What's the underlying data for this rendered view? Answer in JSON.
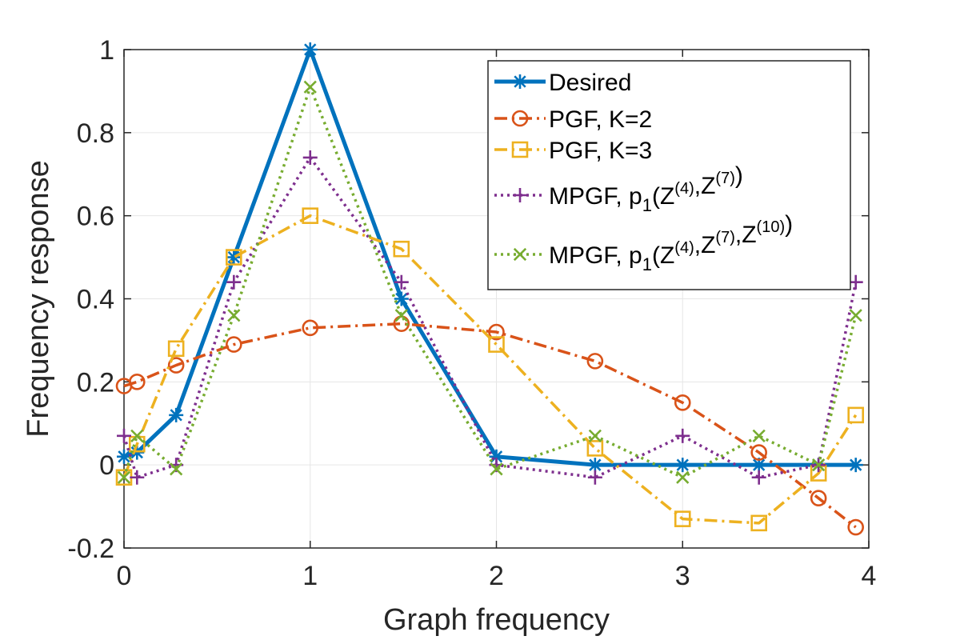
{
  "chart_data": {
    "type": "line",
    "title": "",
    "xlabel": "Graph frequency",
    "ylabel": "Frequency response",
    "xlim": [
      0,
      4
    ],
    "ylim": [
      -0.2,
      1
    ],
    "xticks": [
      "0",
      "1",
      "2",
      "3",
      "4"
    ],
    "yticks": [
      "-0.2",
      "0",
      "0.2",
      "0.4",
      "0.6",
      "0.8",
      "1"
    ],
    "grid": true,
    "legend_position": "top-right",
    "series": [
      {
        "name": "Desired",
        "legend": {
          "main": "Desired",
          "sub": "",
          "supers": []
        },
        "color": "#0072BD",
        "dash": "solid",
        "marker": "asterisk",
        "x": [
          0,
          0.07,
          0.28,
          0.59,
          1.0,
          1.49,
          2.0,
          2.53,
          3.0,
          3.41,
          3.73,
          3.93
        ],
        "y": [
          0.02,
          0.03,
          0.12,
          0.5,
          1.0,
          0.4,
          0.02,
          0.0,
          0.0,
          0.0,
          0.0,
          0.0
        ]
      },
      {
        "name": "PGF, K=2",
        "legend": {
          "main": "PGF, K=2",
          "sub": "",
          "supers": []
        },
        "color": "#D95319",
        "dash": "dashdot",
        "marker": "circle",
        "x": [
          0,
          0.07,
          0.28,
          0.59,
          1.0,
          1.49,
          2.0,
          2.53,
          3.0,
          3.41,
          3.73,
          3.93
        ],
        "y": [
          0.19,
          0.2,
          0.24,
          0.29,
          0.33,
          0.34,
          0.32,
          0.25,
          0.15,
          0.03,
          -0.08,
          -0.15
        ]
      },
      {
        "name": "PGF, K=3",
        "legend": {
          "main": "PGF, K=3",
          "sub": "",
          "supers": []
        },
        "color": "#EDB120",
        "dash": "dashdot",
        "marker": "square",
        "x": [
          0,
          0.07,
          0.28,
          0.59,
          1.0,
          1.49,
          2.0,
          2.53,
          3.0,
          3.41,
          3.73,
          3.93
        ],
        "y": [
          -0.03,
          0.05,
          0.28,
          0.5,
          0.6,
          0.52,
          0.29,
          0.04,
          -0.13,
          -0.14,
          -0.02,
          0.12
        ]
      },
      {
        "name": "MPGF, p1(Z(4),Z(7))",
        "legend": {
          "main": "MPGF, p",
          "sub": "1",
          "supers": [
            "4",
            "7"
          ]
        },
        "color": "#7E2F8E",
        "dash": "dotted",
        "marker": "plus",
        "x": [
          0,
          0.07,
          0.28,
          0.59,
          1.0,
          1.49,
          2.0,
          2.53,
          3.0,
          3.41,
          3.73,
          3.93
        ],
        "y": [
          0.07,
          -0.03,
          0.0,
          0.44,
          0.74,
          0.44,
          0.0,
          -0.03,
          0.07,
          -0.03,
          0.0,
          0.44
        ]
      },
      {
        "name": "MPGF, p1(Z(4),Z(7),Z(10))",
        "legend": {
          "main": "MPGF, p",
          "sub": "1",
          "supers": [
            "4",
            "7",
            "10"
          ]
        },
        "color": "#77AC30",
        "dash": "dotted",
        "marker": "x",
        "x": [
          0,
          0.07,
          0.28,
          0.59,
          1.0,
          1.49,
          2.0,
          2.53,
          3.0,
          3.41,
          3.73,
          3.93
        ],
        "y": [
          -0.03,
          0.07,
          -0.01,
          0.36,
          0.91,
          0.36,
          -0.01,
          0.07,
          -0.03,
          0.07,
          0.0,
          0.36
        ]
      }
    ]
  }
}
